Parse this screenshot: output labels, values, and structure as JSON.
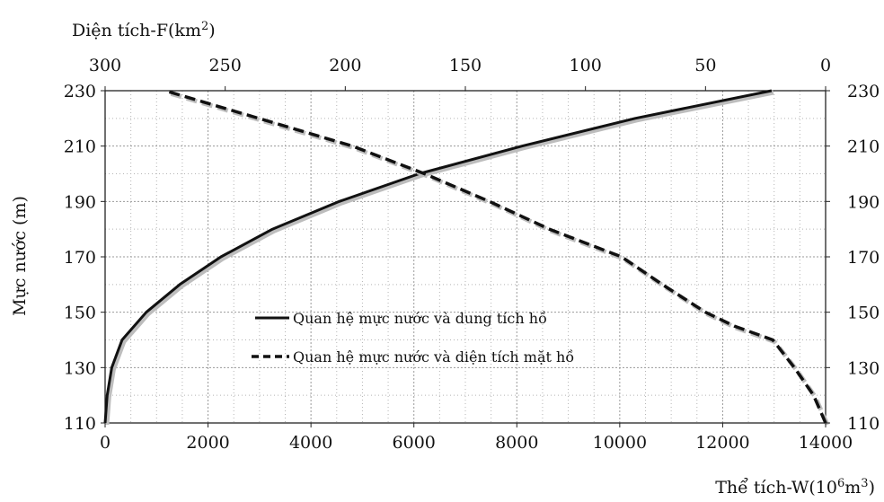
{
  "chart_data": {
    "type": "line",
    "top_axis_label": "Diện tích-F(km",
    "top_axis_label_sup": "2",
    "top_axis_label_end": ")",
    "top_axis_ticks": [
      "300",
      "250",
      "200",
      "150",
      "100",
      "50",
      "0"
    ],
    "top_axis_range": [
      300,
      0
    ],
    "bottom_axis_label": "Thể tích-W(10",
    "bottom_axis_label_sup": "6",
    "bottom_axis_label_mid": "m",
    "bottom_axis_label_sup2": "3",
    "bottom_axis_label_end": ")",
    "bottom_axis_ticks": [
      "0",
      "2000",
      "4000",
      "6000",
      "8000",
      "10000",
      "12000",
      "14000"
    ],
    "bottom_axis_range": [
      0,
      14000
    ],
    "left_axis_label": "Mực nước (m)",
    "y_ticks": [
      "110",
      "130",
      "150",
      "170",
      "190",
      "210",
      "230"
    ],
    "y_range": [
      110,
      230
    ],
    "grid": true,
    "legend_placement": "center",
    "series": [
      {
        "name": "Quan hệ mực nước và dung tích hồ",
        "axis": "bottom",
        "style": "solid",
        "color": "#111111",
        "points": [
          [
            0,
            110
          ],
          [
            40,
            120
          ],
          [
            130,
            130
          ],
          [
            330,
            140
          ],
          [
            800,
            150
          ],
          [
            1450,
            160
          ],
          [
            2250,
            170
          ],
          [
            3250,
            180
          ],
          [
            4550,
            190
          ],
          [
            6100,
            200
          ],
          [
            8100,
            210
          ],
          [
            10300,
            220
          ],
          [
            12950,
            230
          ]
        ]
      },
      {
        "name": "Quan hệ mực nước và diện tích mặt hồ",
        "axis": "top",
        "style": "dashed",
        "color": "#111111",
        "points": [
          [
            0,
            110
          ],
          [
            5,
            120
          ],
          [
            13,
            130
          ],
          [
            22,
            140
          ],
          [
            38,
            145
          ],
          [
            50,
            150
          ],
          [
            68,
            160
          ],
          [
            85,
            170
          ],
          [
            115,
            180
          ],
          [
            140,
            190
          ],
          [
            167,
            200
          ],
          [
            197,
            210
          ],
          [
            236,
            220
          ],
          [
            275,
            230
          ]
        ]
      }
    ]
  }
}
